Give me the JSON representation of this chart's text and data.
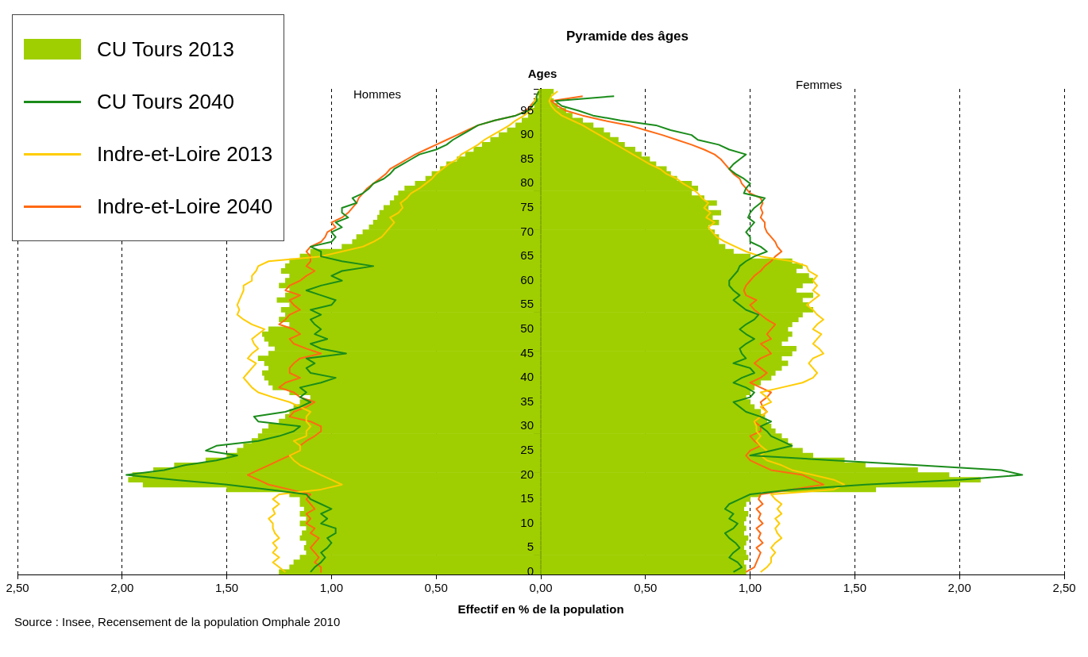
{
  "chart_data": {
    "type": "bar",
    "orientation": "horizontal",
    "stacked": true,
    "title": "Pyramide des âges",
    "xlabel": "Effectif en % de la population",
    "ylabel": "Ages",
    "annotations": [
      "Hommes",
      "Femmes",
      "Source : Insee, Recensement de la population Omphale 2010"
    ],
    "categories": [
      null,
      null,
      null,
      null,
      "95",
      null,
      null,
      null,
      null,
      "90",
      null,
      null,
      null,
      null,
      "85",
      null,
      null,
      null,
      null,
      "80",
      null,
      null,
      null,
      null,
      "75",
      null,
      null,
      null,
      null,
      "70",
      null,
      null,
      null,
      null,
      "65",
      null,
      null,
      null,
      null,
      "60",
      null,
      null,
      null,
      null,
      "55",
      null,
      null,
      null,
      null,
      "50",
      null,
      null,
      null,
      null,
      "45",
      null,
      null,
      null,
      null,
      "40",
      null,
      null,
      null,
      null,
      "35",
      null,
      null,
      null,
      null,
      "30",
      null,
      null,
      null,
      null,
      "25",
      null,
      null,
      null,
      null,
      "20",
      null,
      null,
      null,
      null,
      "15",
      null,
      null,
      null,
      null,
      "10",
      null,
      null,
      null,
      null,
      "5",
      null,
      null,
      null,
      null,
      "0"
    ],
    "xlim": [
      -2.5,
      2.5
    ],
    "xticks": [
      {
        "value": -2.5,
        "label": "2,50"
      },
      {
        "value": -2,
        "label": "2,00"
      },
      {
        "value": -1.5,
        "label": "1,50"
      },
      {
        "value": -1,
        "label": "1,00"
      },
      {
        "value": -0.5,
        "label": "0,50"
      },
      {
        "value": 0,
        "label": "0,00"
      },
      {
        "value": 0.5,
        "label": "0,50"
      },
      {
        "value": 1,
        "label": "1,00"
      },
      {
        "value": 1.5,
        "label": "1,50"
      },
      {
        "value": 2,
        "label": "2,00"
      },
      {
        "value": 2.5,
        "label": "2,50"
      }
    ],
    "grid": "x",
    "legend": "top left",
    "series": [
      {
        "type": "bar",
        "color": "#9fcf00",
        "values": [
          -0.01,
          -0.01,
          -0.02,
          -0.03,
          -0.04,
          -0.06,
          -0.09,
          -0.12,
          -0.16,
          -0.2,
          -0.24,
          -0.28,
          -0.32,
          -0.36,
          -0.4,
          -0.45,
          -0.48,
          -0.52,
          -0.55,
          -0.6,
          -0.65,
          -0.68,
          -0.7,
          -0.72,
          -0.75,
          -0.77,
          -0.78,
          -0.8,
          -0.82,
          -0.85,
          -0.88,
          -0.9,
          -0.95,
          -1.1,
          -1.15,
          -1.2,
          -1.22,
          -1.24,
          -1.2,
          -1.22,
          -1.25,
          -1.2,
          -1.22,
          -1.26,
          -1.2,
          -1.24,
          -1.22,
          -1.25,
          -1.2,
          -1.3,
          -1.33,
          -1.32,
          -1.3,
          -1.27,
          -1.3,
          -1.35,
          -1.32,
          -1.3,
          -1.33,
          -1.32,
          -1.3,
          -1.28,
          -1.2,
          -1.1,
          -1.15,
          -1.18,
          -1.2,
          -1.22,
          -1.25,
          -1.3,
          -1.33,
          -1.35,
          -1.38,
          -1.42,
          -1.45,
          -1.5,
          -1.6,
          -1.75,
          -1.85,
          -1.95,
          -1.97,
          -1.9,
          -1.5,
          -1.2,
          -1.15,
          -1.15,
          -1.13,
          -1.15,
          -1.12,
          -1.15,
          -1.12,
          -1.14,
          -1.15,
          -1.12,
          -1.13,
          -1.12,
          -1.15,
          -1.18,
          -1.2,
          -1.25
        ]
      },
      {
        "name": "CU Tours 2013",
        "type": "bar",
        "color": "#9fcf00",
        "values": [
          0.06,
          0.05,
          0.06,
          0.08,
          0.12,
          0.15,
          0.2,
          0.25,
          0.3,
          0.33,
          0.37,
          0.4,
          0.45,
          0.48,
          0.52,
          0.55,
          0.6,
          0.62,
          0.65,
          0.72,
          0.75,
          0.72,
          0.78,
          0.84,
          0.8,
          0.86,
          0.82,
          0.85,
          0.8,
          0.83,
          0.85,
          0.85,
          0.88,
          0.92,
          1.0,
          1.2,
          1.25,
          1.22,
          1.28,
          1.3,
          1.25,
          1.22,
          1.3,
          1.25,
          1.28,
          1.3,
          1.25,
          1.23,
          1.2,
          1.18,
          1.2,
          1.18,
          1.15,
          1.22,
          1.2,
          1.15,
          1.18,
          1.15,
          1.12,
          1.1,
          1.05,
          1.02,
          1.0,
          0.98,
          1.0,
          1.02,
          1.05,
          1.07,
          1.08,
          1.1,
          1.12,
          1.15,
          1.18,
          1.2,
          1.25,
          1.3,
          1.45,
          1.55,
          1.8,
          1.95,
          2.1,
          2.0,
          1.6,
          1.05,
          1.0,
          0.98,
          0.97,
          0.99,
          0.98,
          0.97,
          0.98,
          0.97,
          0.99,
          0.98,
          0.97,
          0.98,
          0.99,
          0.97,
          0.98,
          0.98
        ]
      },
      {
        "type": "line",
        "color": "#1a8c1a",
        "values": [
          -0.01,
          -0.02,
          -0.02,
          -0.04,
          -0.06,
          -0.12,
          -0.22,
          -0.3,
          -0.34,
          -0.38,
          -0.42,
          -0.45,
          -0.5,
          -0.58,
          -0.62,
          -0.66,
          -0.7,
          -0.72,
          -0.75,
          -0.8,
          -0.82,
          -0.85,
          -0.9,
          -0.88,
          -0.95,
          -0.95,
          -0.92,
          -0.98,
          -0.95,
          -1.0,
          -0.98,
          -1.0,
          -1.1,
          -1.05,
          -1.05,
          -0.95,
          -0.8,
          -0.95,
          -1.0,
          -0.95,
          -1.05,
          -1.12,
          -1.05,
          -0.98,
          -1.0,
          -1.1,
          -1.05,
          -1.1,
          -1.08,
          -1.05,
          -1.08,
          -1.02,
          -1.1,
          -1.05,
          -0.93,
          -1.12,
          -1.08,
          -1.12,
          -1.1,
          -0.98,
          -1.05,
          -1.15,
          -1.12,
          -1.15,
          -1.1,
          -1.15,
          -1.22,
          -1.37,
          -1.35,
          -1.15,
          -1.18,
          -1.25,
          -1.35,
          -1.55,
          -1.6,
          -1.45,
          -1.55,
          -1.7,
          -1.8,
          -1.98,
          -1.75,
          -1.5,
          -1.3,
          -1.12,
          -1.1,
          -1.05,
          -1.0,
          -1.05,
          -1.02,
          -1.05,
          -0.98,
          -0.98,
          -1.02,
          -1.0,
          -1.02,
          -1.05,
          -1.03,
          -1.05,
          -1.08,
          -1.1
        ]
      },
      {
        "name": "CU Tours 2040",
        "type": "line",
        "color": "#1a8c1a",
        "values": [
          null,
          0.35,
          0.07,
          0.1,
          0.18,
          0.25,
          0.38,
          0.55,
          0.62,
          0.72,
          0.75,
          0.85,
          0.9,
          0.98,
          0.95,
          0.92,
          0.9,
          0.93,
          0.97,
          1.0,
          0.98,
          0.97,
          1.07,
          1.05,
          1.02,
          1.0,
          0.99,
          1.02,
          1.0,
          0.98,
          1.0,
          1.0,
          1.05,
          1.08,
          1.02,
          0.98,
          0.95,
          0.94,
          0.92,
          0.9,
          0.9,
          0.92,
          0.95,
          0.92,
          0.95,
          0.98,
          1.04,
          1.02,
          0.98,
          0.95,
          0.98,
          1.02,
          0.98,
          0.95,
          0.96,
          0.98,
          0.92,
          1.0,
          1.02,
          0.96,
          0.92,
          0.98,
          1.02,
          1.0,
          0.92,
          0.95,
          0.98,
          1.05,
          1.1,
          1.05,
          1.08,
          1.1,
          1.15,
          1.2,
          1.1,
          1.0,
          1.4,
          1.8,
          2.2,
          2.3,
          2.0,
          1.55,
          1.2,
          1.0,
          0.95,
          0.9,
          0.88,
          0.92,
          0.9,
          0.94,
          0.92,
          0.88,
          0.9,
          0.93,
          0.95,
          0.92,
          0.9,
          0.94,
          0.96,
          0.92
        ]
      },
      {
        "type": "line",
        "color": "#ffcc00",
        "values": [
          -0.01,
          -0.02,
          -0.03,
          -0.04,
          -0.05,
          -0.08,
          -0.12,
          -0.15,
          -0.19,
          -0.23,
          -0.27,
          -0.3,
          -0.34,
          -0.38,
          -0.4,
          -0.44,
          -0.47,
          -0.5,
          -0.52,
          -0.55,
          -0.58,
          -0.62,
          -0.64,
          -0.67,
          -0.66,
          -0.68,
          -0.72,
          -0.7,
          -0.72,
          -0.74,
          -0.76,
          -0.8,
          -0.85,
          -0.95,
          -1.05,
          -1.3,
          -1.35,
          -1.36,
          -1.38,
          -1.38,
          -1.42,
          -1.42,
          -1.43,
          -1.44,
          -1.45,
          -1.44,
          -1.45,
          -1.42,
          -1.38,
          -1.32,
          -1.35,
          -1.38,
          -1.37,
          -1.35,
          -1.38,
          -1.4,
          -1.36,
          -1.38,
          -1.4,
          -1.42,
          -1.4,
          -1.38,
          -1.35,
          -1.28,
          -1.2,
          -1.15,
          -1.1,
          -1.12,
          -1.12,
          -1.1,
          -1.12,
          -1.12,
          -1.18,
          -1.15,
          -1.15,
          -1.2,
          -1.18,
          -1.15,
          -1.1,
          -1.05,
          -1.0,
          -0.95,
          -1.05,
          -1.25,
          -1.28,
          -1.25,
          -1.28,
          -1.27,
          -1.3,
          -1.28,
          -1.28,
          -1.27,
          -1.25,
          -1.28,
          -1.26,
          -1.28,
          -1.25,
          -1.28,
          -1.25,
          -1.22
        ]
      },
      {
        "name": "Indre-et-Loire 2013",
        "type": "line",
        "color": "#ffcc00",
        "values": [
          0.08,
          0.05,
          0.04,
          0.05,
          0.07,
          0.1,
          0.15,
          0.2,
          0.24,
          0.28,
          0.32,
          0.36,
          0.4,
          0.44,
          0.48,
          0.52,
          0.57,
          0.6,
          0.65,
          0.68,
          0.72,
          0.75,
          0.77,
          0.8,
          0.78,
          0.81,
          0.79,
          0.83,
          0.8,
          0.82,
          0.84,
          0.88,
          0.93,
          0.98,
          1.05,
          1.2,
          1.27,
          1.28,
          1.32,
          1.3,
          1.32,
          1.3,
          1.33,
          1.3,
          1.27,
          1.3,
          1.32,
          1.35,
          1.32,
          1.3,
          1.34,
          1.32,
          1.3,
          1.33,
          1.35,
          1.3,
          1.28,
          1.3,
          1.32,
          1.3,
          1.25,
          1.15,
          1.05,
          1.08,
          1.1,
          1.05,
          1.08,
          1.05,
          1.02,
          1.03,
          1.03,
          1.05,
          1.03,
          1.05,
          1.08,
          1.05,
          1.08,
          1.15,
          1.2,
          1.3,
          1.4,
          1.45,
          1.4,
          1.1,
          1.12,
          1.15,
          1.13,
          1.15,
          1.12,
          1.14,
          1.12,
          1.13,
          1.15,
          1.12,
          1.1,
          1.12,
          1.1,
          1.1,
          1.08,
          1.05
        ]
      },
      {
        "type": "line",
        "color": "#ff6a13",
        "values": [
          -0.01,
          -0.02,
          -0.03,
          -0.05,
          -0.07,
          -0.12,
          -0.22,
          -0.3,
          -0.35,
          -0.4,
          -0.45,
          -0.5,
          -0.55,
          -0.6,
          -0.64,
          -0.68,
          -0.72,
          -0.74,
          -0.77,
          -0.8,
          -0.83,
          -0.85,
          -0.87,
          -0.88,
          -0.9,
          -0.92,
          -0.95,
          -1.0,
          -0.98,
          -1.02,
          -1.03,
          -1.05,
          -1.1,
          -1.12,
          -1.1,
          -1.1,
          -1.12,
          -1.08,
          -1.12,
          -1.15,
          -1.2,
          -1.22,
          -1.15,
          -1.2,
          -1.18,
          -1.15,
          -1.2,
          -1.22,
          -1.25,
          -1.18,
          -1.15,
          -1.2,
          -1.18,
          -1.12,
          -1.05,
          -1.15,
          -1.18,
          -1.2,
          -1.2,
          -1.15,
          -1.22,
          -1.25,
          -1.18,
          -1.15,
          -1.08,
          -1.12,
          -1.18,
          -1.2,
          -1.1,
          -1.05,
          -1.05,
          -1.08,
          -1.12,
          -1.15,
          -1.15,
          -1.2,
          -1.25,
          -1.3,
          -1.35,
          -1.4,
          -1.35,
          -1.3,
          -1.2,
          -1.1,
          -1.12,
          -1.1,
          -1.08,
          -1.12,
          -1.1,
          -1.12,
          -1.08,
          -1.1,
          -1.06,
          -1.08,
          -1.1,
          -1.08,
          -1.06,
          -1.08,
          -1.05,
          -1.05
        ]
      },
      {
        "name": "Indre-et-Loire 2040",
        "type": "line",
        "color": "#ff6a13",
        "values": [
          null,
          0.2,
          0.05,
          0.08,
          0.12,
          0.2,
          0.3,
          0.42,
          0.5,
          0.58,
          0.65,
          0.72,
          0.78,
          0.83,
          0.86,
          0.88,
          0.9,
          0.92,
          0.95,
          0.96,
          0.98,
          1.0,
          1.05,
          1.06,
          1.05,
          1.06,
          1.05,
          1.07,
          1.07,
          1.08,
          1.1,
          1.12,
          1.13,
          1.15,
          1.12,
          1.1,
          1.07,
          1.05,
          1.02,
          1.0,
          0.98,
          0.97,
          0.98,
          1.03,
          1.0,
          1.02,
          1.05,
          1.08,
          1.12,
          1.1,
          1.08,
          1.1,
          1.05,
          1.08,
          1.1,
          1.05,
          1.02,
          1.05,
          1.08,
          1.05,
          1.0,
          1.05,
          1.1,
          1.08,
          1.05,
          1.06,
          1.08,
          1.05,
          1.02,
          1.05,
          1.05,
          1.0,
          1.02,
          1.05,
          1.0,
          0.98,
          1.0,
          1.05,
          1.1,
          1.25,
          1.3,
          1.35,
          1.2,
          1.05,
          1.04,
          1.06,
          1.03,
          1.05,
          1.04,
          1.06,
          1.03,
          1.05,
          1.04,
          1.06,
          1.03,
          1.05,
          1.04,
          1.03,
          1.02,
          0.98
        ]
      }
    ]
  }
}
